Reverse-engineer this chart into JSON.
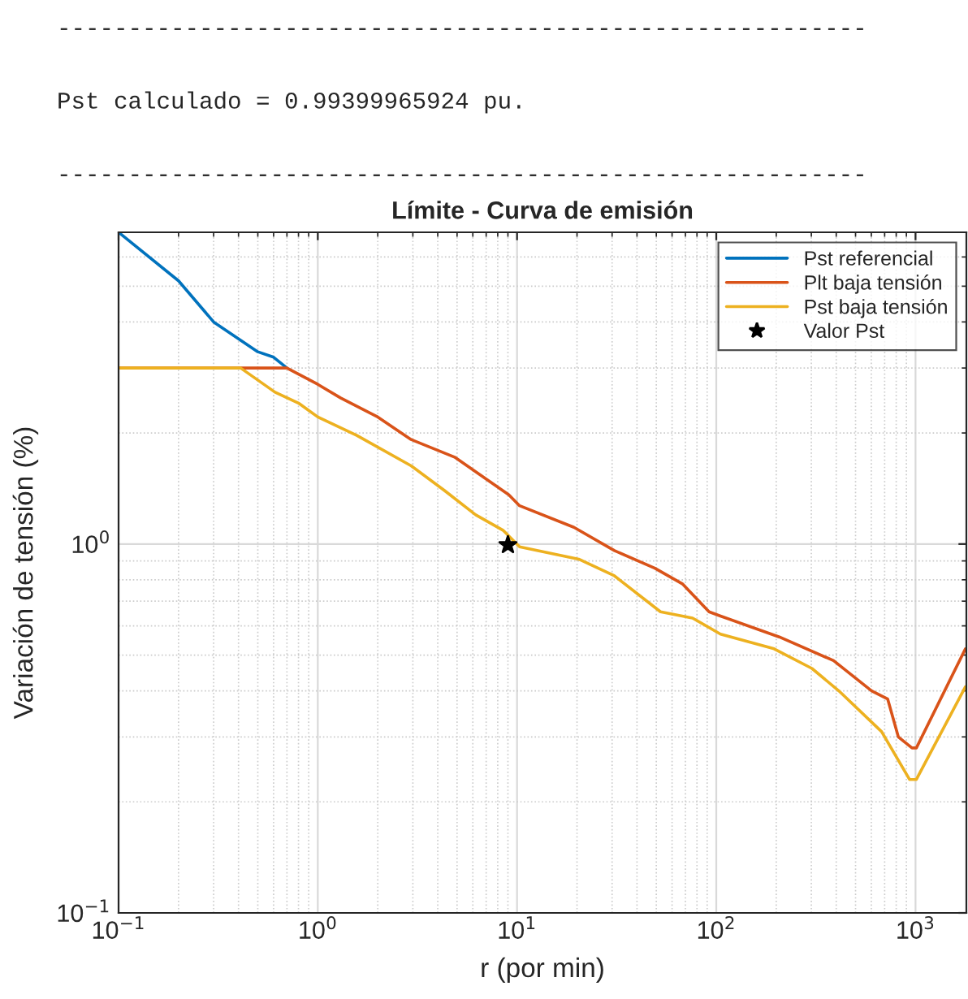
{
  "chart_data": {
    "type": "line",
    "title": "Límite - Curva de emisión",
    "xlabel": "r (por min)",
    "ylabel": "Variación de tensión (%)",
    "annotations": [
      "---------------------------------------------------------",
      "Pst calculado = 0.99399965924 pu.",
      "---------------------------------------------------------"
    ],
    "log": "xy",
    "xlim": [
      0.1,
      1800
    ],
    "ylim": [
      0.1,
      7
    ],
    "xticks": [
      {
        "value": 0.1,
        "label": "10$^{−1}$"
      },
      {
        "value": 1,
        "label": "10$^{0}$"
      },
      {
        "value": 10,
        "label": "10$^{1}$"
      },
      {
        "value": 100,
        "label": "10$^{2}$"
      },
      {
        "value": 1000,
        "label": "10$^{3}$"
      }
    ],
    "yticks": [
      {
        "value": 0.1,
        "label": "10$^{−1}$"
      },
      {
        "value": 1,
        "label": "10$^{0}$"
      }
    ],
    "grid": true,
    "legend": "top right",
    "series": [
      {
        "name": "Pst referencial",
        "color": "#0072bd",
        "x": [
          0.1,
          0.2,
          0.3,
          0.5,
          0.6,
          0.7
        ],
        "values": [
          7.0,
          5.17,
          4.0,
          3.32,
          3.21,
          3.0
        ]
      },
      {
        "name": "Plt baja tensión",
        "color": "#d95319",
        "x": [
          0.1,
          0.7,
          1.0,
          1.3,
          2.0,
          2.94,
          4.86,
          6.65,
          9.1,
          10.3,
          19.3,
          30.8,
          49.2,
          67.6,
          92,
          105,
          207,
          388,
          602,
          725,
          820,
          960,
          1010,
          1780
        ],
        "values": [
          3.0,
          3.0,
          2.71,
          2.49,
          2.21,
          1.92,
          1.72,
          1.53,
          1.36,
          1.27,
          1.11,
          0.96,
          0.86,
          0.78,
          0.655,
          0.638,
          0.56,
          0.483,
          0.4,
          0.38,
          0.3,
          0.28,
          0.28,
          0.52
        ]
      },
      {
        "name": "Pst baja tensión",
        "color": "#edb120",
        "x": [
          0.1,
          0.41,
          0.61,
          0.8,
          1.0,
          1.57,
          2.94,
          4.3,
          6.2,
          8.5,
          10.3,
          20.4,
          30.8,
          52.5,
          76,
          105,
          195,
          302,
          412,
          676,
          933,
          1010,
          1780
        ],
        "values": [
          3.0,
          3.0,
          2.58,
          2.41,
          2.21,
          1.97,
          1.63,
          1.4,
          1.2,
          1.09,
          0.983,
          0.91,
          0.82,
          0.655,
          0.63,
          0.57,
          0.52,
          0.46,
          0.4,
          0.31,
          0.23,
          0.23,
          0.41
        ]
      },
      {
        "name": "Valor Pst",
        "type": "scatter",
        "marker": "star",
        "color": "#000000",
        "x": [
          9
        ],
        "values": [
          0.994
        ]
      }
    ]
  }
}
